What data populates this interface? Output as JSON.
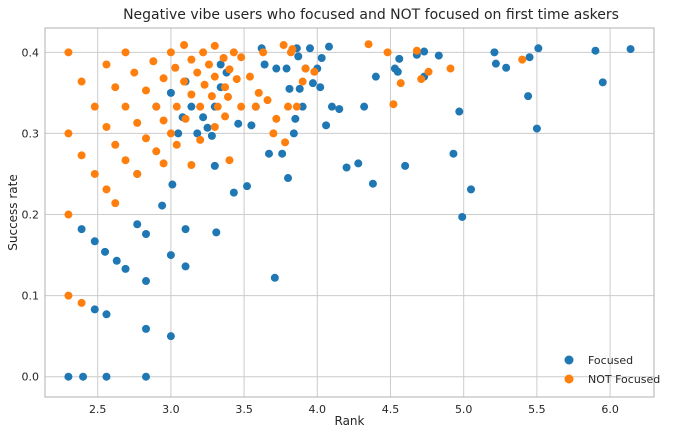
{
  "chart_data": {
    "type": "scatter",
    "title": "Negative vibe users who focused and NOT focused on first time askers",
    "xlabel": "Rank",
    "ylabel": "Success rate",
    "xlim": [
      2.14,
      6.3
    ],
    "ylim": [
      -0.025,
      0.43
    ],
    "xticks": [
      "2.5",
      "3.0",
      "3.5",
      "4.0",
      "4.5",
      "5.0",
      "5.5",
      "6.0"
    ],
    "yticks": [
      "0.0",
      "0.1",
      "0.2",
      "0.3",
      "0.4"
    ],
    "grid": true,
    "legend_position": "lower-right",
    "series": [
      {
        "name": "Focused",
        "color": "#1f77b4",
        "points": [
          [
            2.3,
            0.0
          ],
          [
            2.4,
            0.0
          ],
          [
            2.56,
            0.0
          ],
          [
            2.83,
            0.0
          ],
          [
            2.39,
            0.182
          ],
          [
            2.48,
            0.167
          ],
          [
            2.55,
            0.154
          ],
          [
            2.63,
            0.143
          ],
          [
            2.69,
            0.133
          ],
          [
            2.83,
            0.118
          ],
          [
            2.48,
            0.083
          ],
          [
            2.56,
            0.077
          ],
          [
            2.83,
            0.059
          ],
          [
            3.0,
            0.05
          ],
          [
            2.77,
            0.188
          ],
          [
            2.83,
            0.176
          ],
          [
            2.94,
            0.211
          ],
          [
            3.01,
            0.237
          ],
          [
            3.0,
            0.15
          ],
          [
            3.1,
            0.136
          ],
          [
            3.1,
            0.182
          ],
          [
            3.31,
            0.178
          ],
          [
            2.77,
            0.25
          ],
          [
            2.9,
            0.333
          ],
          [
            3.0,
            0.35
          ],
          [
            3.05,
            0.3
          ],
          [
            3.08,
            0.32
          ],
          [
            3.1,
            0.364
          ],
          [
            3.14,
            0.333
          ],
          [
            3.18,
            0.3
          ],
          [
            3.22,
            0.32
          ],
          [
            3.25,
            0.307
          ],
          [
            3.28,
            0.297
          ],
          [
            3.3,
            0.26
          ],
          [
            3.3,
            0.333
          ],
          [
            3.34,
            0.357
          ],
          [
            3.34,
            0.385
          ],
          [
            3.38,
            0.375
          ],
          [
            3.43,
            0.227
          ],
          [
            3.46,
            0.312
          ],
          [
            3.52,
            0.235
          ],
          [
            3.55,
            0.31
          ],
          [
            3.58,
            0.333
          ],
          [
            3.62,
            0.405
          ],
          [
            3.64,
            0.385
          ],
          [
            3.67,
            0.275
          ],
          [
            3.71,
            0.122
          ],
          [
            3.72,
            0.38
          ],
          [
            3.76,
            0.275
          ],
          [
            3.79,
            0.38
          ],
          [
            3.8,
            0.245
          ],
          [
            3.81,
            0.355
          ],
          [
            3.84,
            0.3
          ],
          [
            3.85,
            0.318
          ],
          [
            3.86,
            0.405
          ],
          [
            3.87,
            0.395
          ],
          [
            3.88,
            0.355
          ],
          [
            3.9,
            0.333
          ],
          [
            3.92,
            0.38
          ],
          [
            3.95,
            0.405
          ],
          [
            3.97,
            0.362
          ],
          [
            4.0,
            0.38
          ],
          [
            4.02,
            0.357
          ],
          [
            4.03,
            0.393
          ],
          [
            4.06,
            0.31
          ],
          [
            4.08,
            0.407
          ],
          [
            4.1,
            0.333
          ],
          [
            4.15,
            0.33
          ],
          [
            4.2,
            0.258
          ],
          [
            4.28,
            0.263
          ],
          [
            4.32,
            0.333
          ],
          [
            4.38,
            0.238
          ],
          [
            4.4,
            0.37
          ],
          [
            4.53,
            0.38
          ],
          [
            4.55,
            0.376
          ],
          [
            4.56,
            0.392
          ],
          [
            4.6,
            0.26
          ],
          [
            4.68,
            0.397
          ],
          [
            4.73,
            0.401
          ],
          [
            4.73,
            0.37
          ],
          [
            4.83,
            0.396
          ],
          [
            4.93,
            0.275
          ],
          [
            4.97,
            0.327
          ],
          [
            4.99,
            0.197
          ],
          [
            5.05,
            0.231
          ],
          [
            5.21,
            0.4
          ],
          [
            5.22,
            0.386
          ],
          [
            5.29,
            0.381
          ],
          [
            5.44,
            0.346
          ],
          [
            5.45,
            0.394
          ],
          [
            5.5,
            0.306
          ],
          [
            5.51,
            0.405
          ],
          [
            5.9,
            0.402
          ],
          [
            5.95,
            0.363
          ],
          [
            6.14,
            0.404
          ]
        ]
      },
      {
        "name": "NOT Focused",
        "color": "#ff7f0e",
        "points": [
          [
            2.3,
            0.4
          ],
          [
            2.3,
            0.3
          ],
          [
            2.3,
            0.2
          ],
          [
            2.3,
            0.1
          ],
          [
            2.39,
            0.364
          ],
          [
            2.39,
            0.273
          ],
          [
            2.39,
            0.091
          ],
          [
            2.48,
            0.333
          ],
          [
            2.48,
            0.25
          ],
          [
            2.56,
            0.385
          ],
          [
            2.56,
            0.308
          ],
          [
            2.56,
            0.231
          ],
          [
            2.62,
            0.357
          ],
          [
            2.62,
            0.286
          ],
          [
            2.62,
            0.214
          ],
          [
            2.69,
            0.4
          ],
          [
            2.69,
            0.333
          ],
          [
            2.69,
            0.267
          ],
          [
            2.75,
            0.375
          ],
          [
            2.77,
            0.313
          ],
          [
            2.77,
            0.25
          ],
          [
            2.83,
            0.353
          ],
          [
            2.83,
            0.294
          ],
          [
            2.88,
            0.389
          ],
          [
            2.9,
            0.333
          ],
          [
            2.9,
            0.278
          ],
          [
            2.95,
            0.368
          ],
          [
            2.95,
            0.316
          ],
          [
            2.95,
            0.263
          ],
          [
            3.0,
            0.4
          ],
          [
            3.0,
            0.3
          ],
          [
            3.03,
            0.381
          ],
          [
            3.04,
            0.333
          ],
          [
            3.04,
            0.286
          ],
          [
            3.09,
            0.409
          ],
          [
            3.09,
            0.364
          ],
          [
            3.1,
            0.318
          ],
          [
            3.14,
            0.391
          ],
          [
            3.14,
            0.348
          ],
          [
            3.14,
            0.261
          ],
          [
            3.18,
            0.375
          ],
          [
            3.2,
            0.333
          ],
          [
            3.2,
            0.292
          ],
          [
            3.22,
            0.4
          ],
          [
            3.23,
            0.36
          ],
          [
            3.26,
            0.385
          ],
          [
            3.28,
            0.346
          ],
          [
            3.3,
            0.308
          ],
          [
            3.3,
            0.408
          ],
          [
            3.3,
            0.37
          ],
          [
            3.32,
            0.333
          ],
          [
            3.36,
            0.393
          ],
          [
            3.37,
            0.357
          ],
          [
            3.37,
            0.321
          ],
          [
            3.39,
            0.345
          ],
          [
            3.4,
            0.379
          ],
          [
            3.4,
            0.267
          ],
          [
            3.43,
            0.4
          ],
          [
            3.45,
            0.367
          ],
          [
            3.48,
            0.394
          ],
          [
            3.48,
            0.333
          ],
          [
            3.54,
            0.37
          ],
          [
            3.58,
            0.333
          ],
          [
            3.6,
            0.35
          ],
          [
            3.63,
            0.4
          ],
          [
            3.66,
            0.341
          ],
          [
            3.7,
            0.3
          ],
          [
            3.72,
            0.318
          ],
          [
            3.77,
            0.409
          ],
          [
            3.78,
            0.289
          ],
          [
            3.8,
            0.333
          ],
          [
            3.82,
            0.4
          ],
          [
            3.83,
            0.404
          ],
          [
            3.86,
            0.333
          ],
          [
            3.9,
            0.364
          ],
          [
            3.92,
            0.38
          ],
          [
            3.98,
            0.376
          ],
          [
            4.35,
            0.41
          ],
          [
            4.48,
            0.4
          ],
          [
            4.52,
            0.336
          ],
          [
            4.57,
            0.362
          ],
          [
            4.68,
            0.402
          ],
          [
            4.71,
            0.367
          ],
          [
            4.76,
            0.376
          ],
          [
            4.91,
            0.38
          ],
          [
            5.4,
            0.391
          ]
        ]
      }
    ]
  }
}
